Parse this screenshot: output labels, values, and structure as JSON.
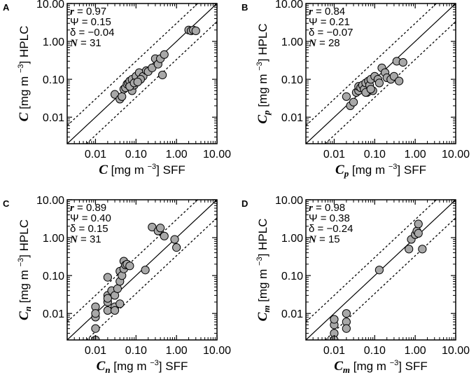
{
  "figure": {
    "axis_ticks": [
      "0.01",
      "0.10",
      "1.00",
      "10.00"
    ],
    "unit_text": "[mg m",
    "unit_exp": "−3",
    "unit_close": "]",
    "x_suffix": "SFF",
    "y_suffix": "HPLC"
  },
  "chart_data": [
    {
      "type": "scatter",
      "panel": "A",
      "symbol": "C",
      "subscript": "",
      "xlabel": "C [mg m−3] SFF",
      "ylabel": "C [mg m−3] HPLC",
      "xscale": "log",
      "yscale": "log",
      "xlim": [
        0.002,
        10
      ],
      "ylim": [
        0.002,
        10
      ],
      "reference_lines": [
        "1:1 solid",
        "x3 and /3 dashed"
      ],
      "stats": {
        "r": "0.97",
        "psi": "0.15",
        "delta": "−0.04",
        "N": "31"
      },
      "x": [
        0.03,
        0.04,
        0.045,
        0.05,
        0.055,
        0.06,
        0.065,
        0.07,
        0.08,
        0.08,
        0.09,
        0.1,
        0.1,
        0.12,
        0.15,
        0.18,
        0.2,
        0.25,
        0.3,
        0.35,
        0.4,
        0.5,
        0.45,
        0.07,
        0.09,
        2.0,
        2.3,
        2.6,
        3.0,
        0.13,
        0.11
      ],
      "y": [
        0.04,
        0.03,
        0.035,
        0.055,
        0.06,
        0.075,
        0.08,
        0.09,
        0.05,
        0.1,
        0.07,
        0.09,
        0.12,
        0.15,
        0.12,
        0.17,
        0.16,
        0.2,
        0.35,
        0.25,
        0.35,
        0.45,
        0.13,
        0.065,
        0.08,
        2.0,
        1.9,
        2.0,
        1.9,
        0.1,
        0.085
      ]
    },
    {
      "type": "scatter",
      "panel": "B",
      "symbol": "C",
      "subscript": "p",
      "xlabel": "Cp [mg m−3] SFF",
      "ylabel": "Cp [mg m−3] HPLC",
      "xscale": "log",
      "yscale": "log",
      "xlim": [
        0.002,
        10
      ],
      "ylim": [
        0.002,
        10
      ],
      "reference_lines": [
        "1:1 solid",
        "x3 and /3 dashed"
      ],
      "stats": {
        "r": "0.84",
        "psi": "0.21",
        "delta": "−0.07",
        "N": "28"
      },
      "x": [
        0.02,
        0.025,
        0.03,
        0.035,
        0.04,
        0.04,
        0.045,
        0.05,
        0.055,
        0.06,
        0.065,
        0.07,
        0.075,
        0.08,
        0.09,
        0.1,
        0.12,
        0.13,
        0.15,
        0.18,
        0.2,
        0.25,
        0.3,
        0.35,
        0.4,
        0.5,
        0.06,
        0.08
      ],
      "y": [
        0.035,
        0.02,
        0.025,
        0.045,
        0.05,
        0.065,
        0.06,
        0.07,
        0.055,
        0.08,
        0.045,
        0.09,
        0.07,
        0.1,
        0.05,
        0.12,
        0.1,
        0.08,
        0.2,
        0.15,
        0.11,
        0.1,
        0.12,
        0.3,
        0.09,
        0.28,
        0.045,
        0.055
      ]
    },
    {
      "type": "scatter",
      "panel": "C",
      "symbol": "C",
      "subscript": "n",
      "xlabel": "Cn [mg m−3] SFF",
      "ylabel": "Cn [mg m−3] HPLC",
      "xscale": "log",
      "yscale": "log",
      "xlim": [
        0.002,
        10
      ],
      "ylim": [
        0.002,
        10
      ],
      "reference_lines": [
        "1:1 solid",
        "x3 and /3 dashed"
      ],
      "stats": {
        "r": "0.89",
        "psi": "0.40",
        "delta": "0.15",
        "N": "31"
      },
      "x": [
        0.01,
        0.01,
        0.01,
        0.01,
        0.01,
        0.02,
        0.02,
        0.02,
        0.02,
        0.025,
        0.02,
        0.03,
        0.03,
        0.035,
        0.04,
        0.04,
        0.045,
        0.05,
        0.05,
        0.055,
        0.06,
        0.07,
        0.04,
        0.03,
        0.17,
        0.25,
        0.35,
        0.4,
        0.5,
        0.9,
        1.0
      ],
      "y": [
        0.015,
        0.008,
        0.004,
        0.002,
        0.01,
        0.012,
        0.02,
        0.03,
        0.09,
        0.04,
        0.025,
        0.015,
        0.03,
        0.045,
        0.07,
        0.13,
        0.1,
        0.15,
        0.24,
        0.19,
        0.2,
        0.18,
        0.018,
        0.012,
        0.14,
        1.9,
        1.5,
        1.8,
        1.1,
        0.9,
        0.55
      ]
    },
    {
      "type": "scatter",
      "panel": "D",
      "symbol": "C",
      "subscript": "m",
      "xlabel": "Cm [mg m−3] SFF",
      "ylabel": "Cm [mg m−3] HPLC",
      "xscale": "log",
      "yscale": "log",
      "xlim": [
        0.002,
        10
      ],
      "ylim": [
        0.002,
        10
      ],
      "reference_lines": [
        "1:1 solid",
        "x3 and /3 dashed"
      ],
      "stats": {
        "r": "0.98",
        "psi": "0.38",
        "delta": "−0.24",
        "N": "15"
      },
      "x": [
        0.01,
        0.01,
        0.01,
        0.01,
        0.02,
        0.02,
        0.02,
        0.13,
        0.7,
        0.8,
        1.0,
        1.1,
        1.2,
        1.2,
        1.5
      ],
      "y": [
        0.005,
        0.007,
        0.003,
        0.002,
        0.01,
        0.006,
        0.004,
        0.14,
        0.5,
        0.9,
        1.2,
        1.5,
        2.3,
        1.3,
        0.5
      ]
    }
  ]
}
